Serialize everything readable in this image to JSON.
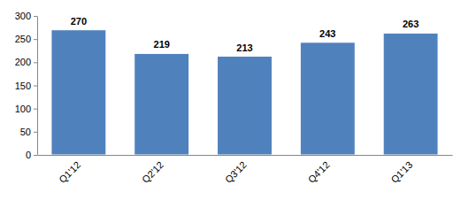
{
  "chart_data": {
    "type": "bar",
    "categories": [
      "Q1'12",
      "Q2'12",
      "Q3'12",
      "Q4'12",
      "Q1'13"
    ],
    "values": [
      270,
      219,
      213,
      243,
      263
    ],
    "color": "#4f81bd",
    "ylim": [
      0,
      300
    ],
    "yticks": [
      0,
      50,
      100,
      150,
      200,
      250,
      300
    ],
    "grid": false,
    "data_labels": true
  }
}
